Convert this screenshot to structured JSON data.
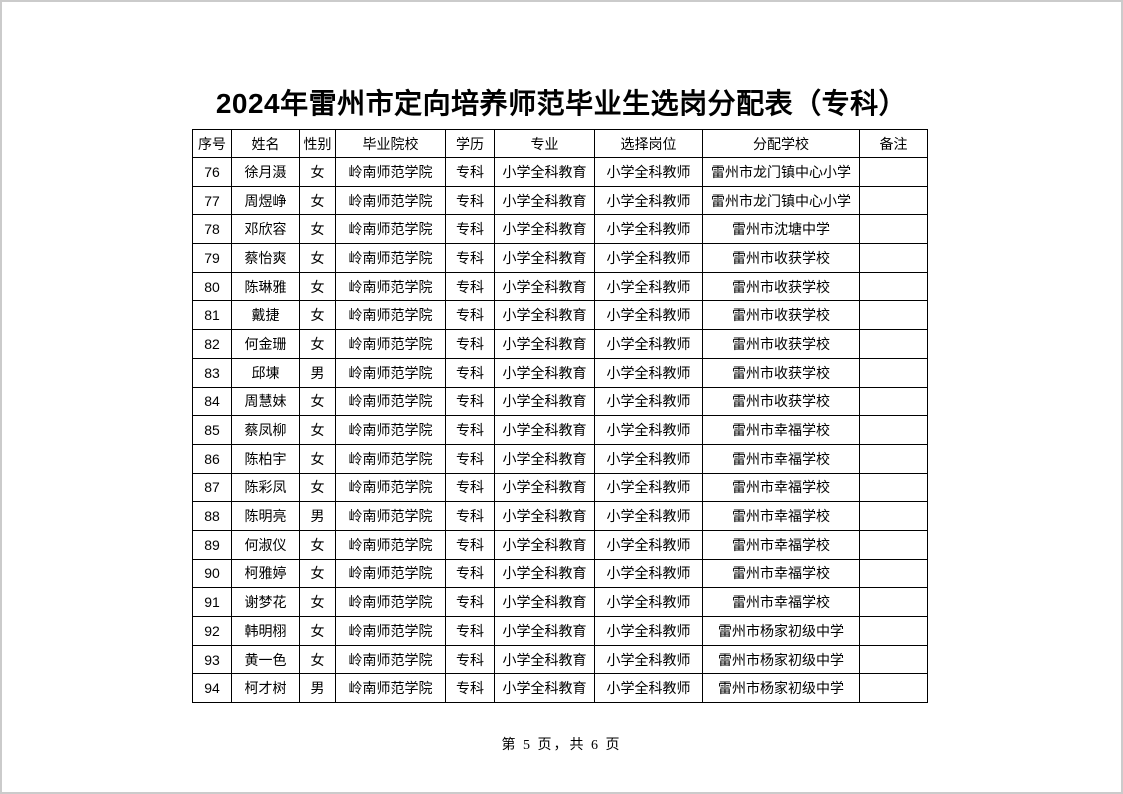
{
  "page": {
    "title": "2024年雷州市定向培养师范毕业生选岗分配表（专科）",
    "footer": "第 5 页，共 6 页"
  },
  "table": {
    "headers": [
      "序号",
      "姓名",
      "性别",
      "毕业院校",
      "学历",
      "专业",
      "选择岗位",
      "分配学校",
      "备注"
    ],
    "rows": [
      [
        "76",
        "徐月滠",
        "女",
        "岭南师范学院",
        "专科",
        "小学全科教育",
        "小学全科教师",
        "雷州市龙门镇中心小学",
        ""
      ],
      [
        "77",
        "周煜峥",
        "女",
        "岭南师范学院",
        "专科",
        "小学全科教育",
        "小学全科教师",
        "雷州市龙门镇中心小学",
        ""
      ],
      [
        "78",
        "邓欣容",
        "女",
        "岭南师范学院",
        "专科",
        "小学全科教育",
        "小学全科教师",
        "雷州市沈塘中学",
        ""
      ],
      [
        "79",
        "蔡怡爽",
        "女",
        "岭南师范学院",
        "专科",
        "小学全科教育",
        "小学全科教师",
        "雷州市收获学校",
        ""
      ],
      [
        "80",
        "陈琳雅",
        "女",
        "岭南师范学院",
        "专科",
        "小学全科教育",
        "小学全科教师",
        "雷州市收获学校",
        ""
      ],
      [
        "81",
        "戴捷",
        "女",
        "岭南师范学院",
        "专科",
        "小学全科教育",
        "小学全科教师",
        "雷州市收获学校",
        ""
      ],
      [
        "82",
        "何金珊",
        "女",
        "岭南师范学院",
        "专科",
        "小学全科教育",
        "小学全科教师",
        "雷州市收获学校",
        ""
      ],
      [
        "83",
        "邱埬",
        "男",
        "岭南师范学院",
        "专科",
        "小学全科教育",
        "小学全科教师",
        "雷州市收获学校",
        ""
      ],
      [
        "84",
        "周慧妹",
        "女",
        "岭南师范学院",
        "专科",
        "小学全科教育",
        "小学全科教师",
        "雷州市收获学校",
        ""
      ],
      [
        "85",
        "蔡凤柳",
        "女",
        "岭南师范学院",
        "专科",
        "小学全科教育",
        "小学全科教师",
        "雷州市幸福学校",
        ""
      ],
      [
        "86",
        "陈柏宇",
        "女",
        "岭南师范学院",
        "专科",
        "小学全科教育",
        "小学全科教师",
        "雷州市幸福学校",
        ""
      ],
      [
        "87",
        "陈彩凤",
        "女",
        "岭南师范学院",
        "专科",
        "小学全科教育",
        "小学全科教师",
        "雷州市幸福学校",
        ""
      ],
      [
        "88",
        "陈明亮",
        "男",
        "岭南师范学院",
        "专科",
        "小学全科教育",
        "小学全科教师",
        "雷州市幸福学校",
        ""
      ],
      [
        "89",
        "何淑仪",
        "女",
        "岭南师范学院",
        "专科",
        "小学全科教育",
        "小学全科教师",
        "雷州市幸福学校",
        ""
      ],
      [
        "90",
        "柯雅婷",
        "女",
        "岭南师范学院",
        "专科",
        "小学全科教育",
        "小学全科教师",
        "雷州市幸福学校",
        ""
      ],
      [
        "91",
        "谢梦花",
        "女",
        "岭南师范学院",
        "专科",
        "小学全科教育",
        "小学全科教师",
        "雷州市幸福学校",
        ""
      ],
      [
        "92",
        "韩明栩",
        "女",
        "岭南师范学院",
        "专科",
        "小学全科教育",
        "小学全科教师",
        "雷州市杨家初级中学",
        ""
      ],
      [
        "93",
        "黄一色",
        "女",
        "岭南师范学院",
        "专科",
        "小学全科教育",
        "小学全科教师",
        "雷州市杨家初级中学",
        ""
      ],
      [
        "94",
        "柯才树",
        "男",
        "岭南师范学院",
        "专科",
        "小学全科教育",
        "小学全科教师",
        "雷州市杨家初级中学",
        ""
      ]
    ]
  }
}
